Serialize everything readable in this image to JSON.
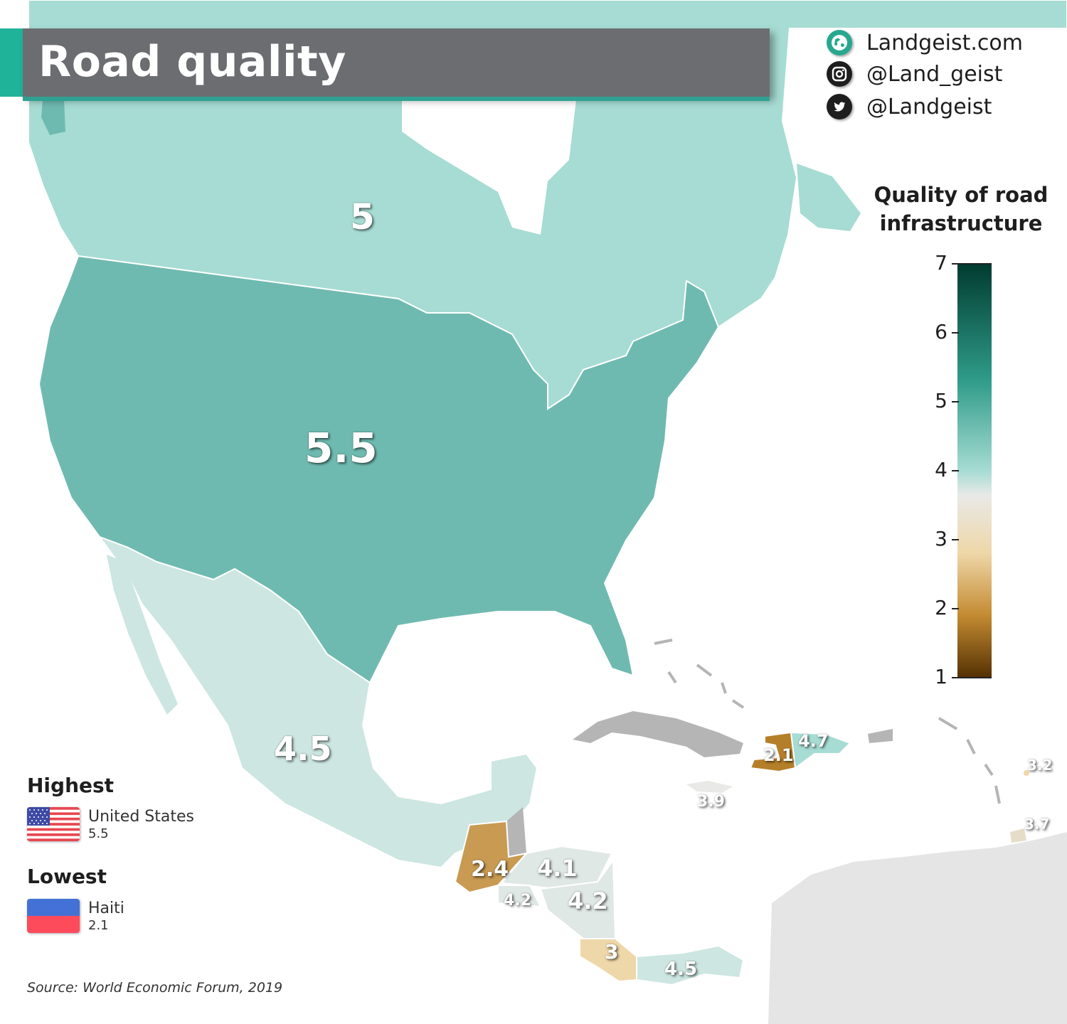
{
  "header": {
    "title": "Road quality"
  },
  "social": {
    "website": "Landgeist.com",
    "instagram": "@Land_geist",
    "twitter": "@Landgeist",
    "icons": [
      "globe-icon",
      "instagram-icon",
      "twitter-icon"
    ]
  },
  "legend": {
    "title_line1": "Quality of road",
    "title_line2": "infrastructure",
    "ticks": [
      "7",
      "6",
      "5",
      "4",
      "3",
      "2",
      "1"
    ],
    "min": 1,
    "max": 7
  },
  "colors": {
    "accent": "#1fb39a",
    "banner": "#6c6d71",
    "united_states": "#6fbab0",
    "canada": "#a6dcd3",
    "mexico": "#cde6e1",
    "haiti": "#b57f2a",
    "guatemala": "#c89a52",
    "costa_rica": "#eed7a8",
    "no_data": "#b5b5b5",
    "outside_region": "#e5e5e5"
  },
  "map_values": {
    "canada": "5",
    "united_states": "5.5",
    "mexico": "4.5",
    "haiti": "2.1",
    "dominican_republic": "4.7",
    "jamaica": "3.9",
    "guatemala": "2.4",
    "honduras": "4.1",
    "el_salvador": "4.2",
    "nicaragua": "4.2",
    "costa_rica": "3",
    "panama": "4.5",
    "barbados": "3.2",
    "trinidad_and_tobago": "3.7"
  },
  "highest": {
    "heading": "Highest",
    "country": "United States",
    "value": "5.5"
  },
  "lowest": {
    "heading": "Lowest",
    "country": "Haiti",
    "value": "2.1"
  },
  "source": "Source: World Economic Forum, 2019"
}
